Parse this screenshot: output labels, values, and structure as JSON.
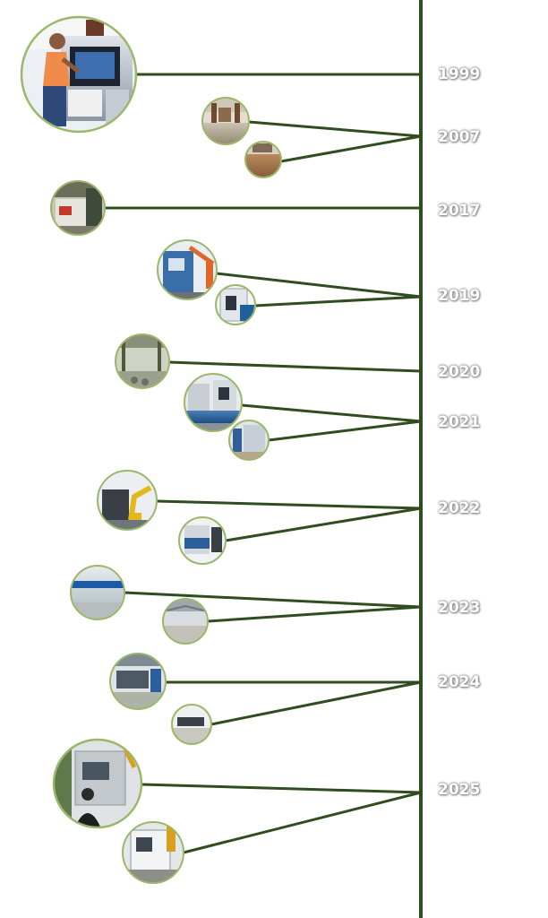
{
  "colors": {
    "line": "#2f4d1f",
    "photo_ring": "#9bb86a",
    "year_text": "#ffffff"
  },
  "years": [
    "1999",
    "2007",
    "2017",
    "2019",
    "2020",
    "2021",
    "2022",
    "2023",
    "2024",
    "2025"
  ]
}
